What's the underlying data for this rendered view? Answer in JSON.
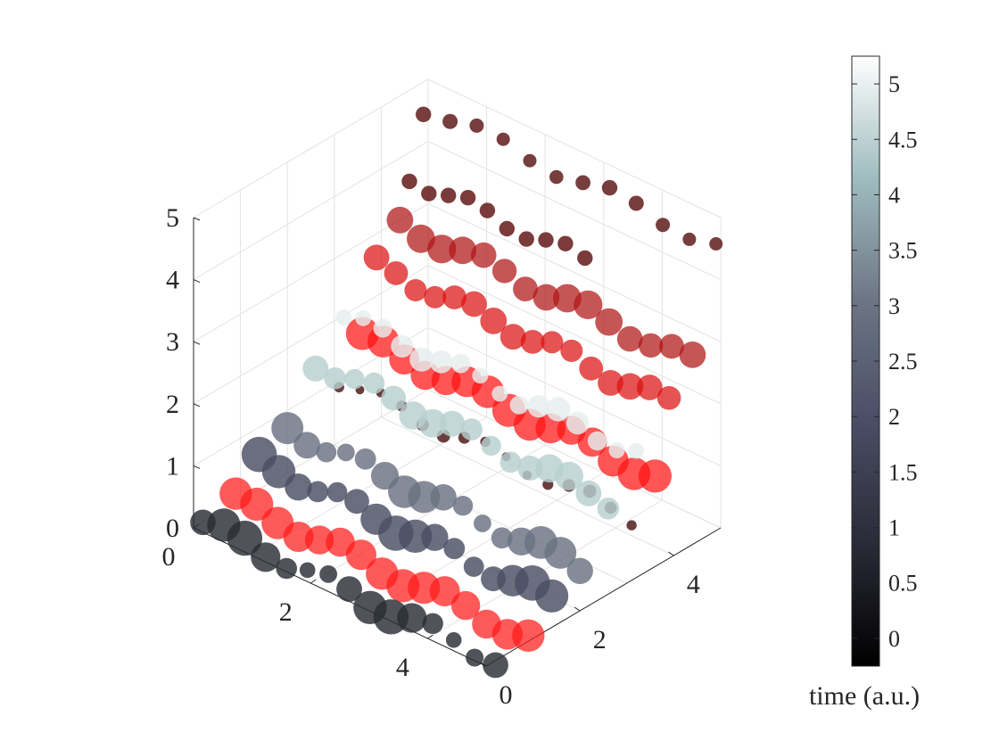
{
  "chart_data": {
    "type": "scatter",
    "dimensionality": "3d",
    "view": "isometric",
    "x": {
      "ticks": [
        0,
        2,
        4
      ],
      "tick_labels": [
        "0",
        "2",
        "4"
      ],
      "lim": [
        0,
        5
      ]
    },
    "y": {
      "ticks": [
        0,
        2,
        4
      ],
      "tick_labels": [
        "0",
        "2",
        "4"
      ],
      "lim": [
        0,
        5
      ]
    },
    "z": {
      "ticks": [
        0,
        1,
        2,
        3,
        4,
        5
      ],
      "tick_labels": [
        "0",
        "1",
        "2",
        "3",
        "4",
        "5"
      ],
      "lim": [
        0,
        5
      ]
    },
    "grid": true,
    "colorbar": {
      "label": "time (a.u.)",
      "lim": [
        -0.25,
        5.25
      ],
      "ticks": [
        0,
        0.5,
        1,
        1.5,
        2,
        2.5,
        3,
        3.5,
        4,
        4.5,
        5
      ],
      "tick_labels": [
        "0",
        "0.5",
        "1",
        "1.5",
        "2",
        "2.5",
        "3",
        "3.5",
        "4",
        "4.5",
        "5"
      ],
      "colormap": [
        "#000000",
        "#2a2b37",
        "#4a4d66",
        "#6d7585",
        "#9fbcbf",
        "#ffffff"
      ]
    },
    "series": [
      {
        "points": 15,
        "x": [
          0,
          5
        ],
        "y": [
          0.2,
          0.2
        ],
        "z": 0.0,
        "time": 1.0,
        "color": "#2a2d34",
        "size": [
          14,
          32
        ],
        "red_overlay": false
      },
      {
        "points": 15,
        "x": [
          0,
          5
        ],
        "y": [
          0.9,
          0.9
        ],
        "z": 0.05,
        "time": 0.5,
        "color": "#ff1a1a",
        "size": [
          26,
          30
        ],
        "red_overlay": true
      },
      {
        "points": 16,
        "x": [
          0,
          5
        ],
        "y": [
          1.4,
          1.4
        ],
        "z": 0.45,
        "time": 1.8,
        "color": "#4b4e63",
        "size": [
          18,
          32
        ],
        "red_overlay": false
      },
      {
        "points": 16,
        "x": [
          0,
          5
        ],
        "y": [
          2.0,
          2.0
        ],
        "z": 0.7,
        "time": 2.9,
        "color": "#6a7281",
        "size": [
          16,
          30
        ],
        "red_overlay": false
      },
      {
        "points": 16,
        "x": [
          0,
          5
        ],
        "y": [
          2.6,
          2.6
        ],
        "z": 1.5,
        "time": 4.0,
        "color": "#b7cfd0",
        "size": [
          18,
          26
        ],
        "red_overlay": false
      },
      {
        "points": 15,
        "x": [
          0,
          5
        ],
        "y": [
          3.1,
          3.1
        ],
        "z": 1.0,
        "time": 0.3,
        "color": "#4a1414",
        "size": [
          8,
          12
        ],
        "red_overlay": false
      },
      {
        "points": 16,
        "x": [
          0,
          5
        ],
        "y": [
          3.2,
          3.2
        ],
        "z": 2.0,
        "time": 4.8,
        "color": "#e6eeee",
        "size": [
          14,
          22
        ],
        "red_overlay": false
      },
      {
        "points": 15,
        "x": [
          0,
          5
        ],
        "y": [
          3.6,
          3.6
        ],
        "z": 1.45,
        "time": 1.0,
        "color": "#ff1414",
        "size": [
          30,
          26
        ],
        "red_overlay": true
      },
      {
        "points": 16,
        "x": [
          0,
          5
        ],
        "y": [
          3.9,
          3.9
        ],
        "z": 2.5,
        "time": 0.8,
        "color": "#dd1010",
        "size": [
          24,
          20
        ],
        "red_overlay": true
      },
      {
        "points": 15,
        "x": [
          0,
          5
        ],
        "y": [
          4.4,
          4.4
        ],
        "z": 2.95,
        "time": 0.6,
        "color": "#b01515",
        "size": [
          22,
          26
        ],
        "red_overlay": true
      },
      {
        "points": 10,
        "x": [
          0,
          3
        ],
        "y": [
          4.6,
          4.6
        ],
        "z": 3.6,
        "time": 0.4,
        "color": "#5e1010",
        "size": [
          14,
          14
        ],
        "red_overlay": false
      },
      {
        "points": 12,
        "x": [
          0,
          5
        ],
        "y": [
          4.9,
          4.9
        ],
        "z": 4.6,
        "time": 0.2,
        "color": "#5a1313",
        "size": [
          12,
          14
        ],
        "red_overlay": false
      }
    ]
  }
}
